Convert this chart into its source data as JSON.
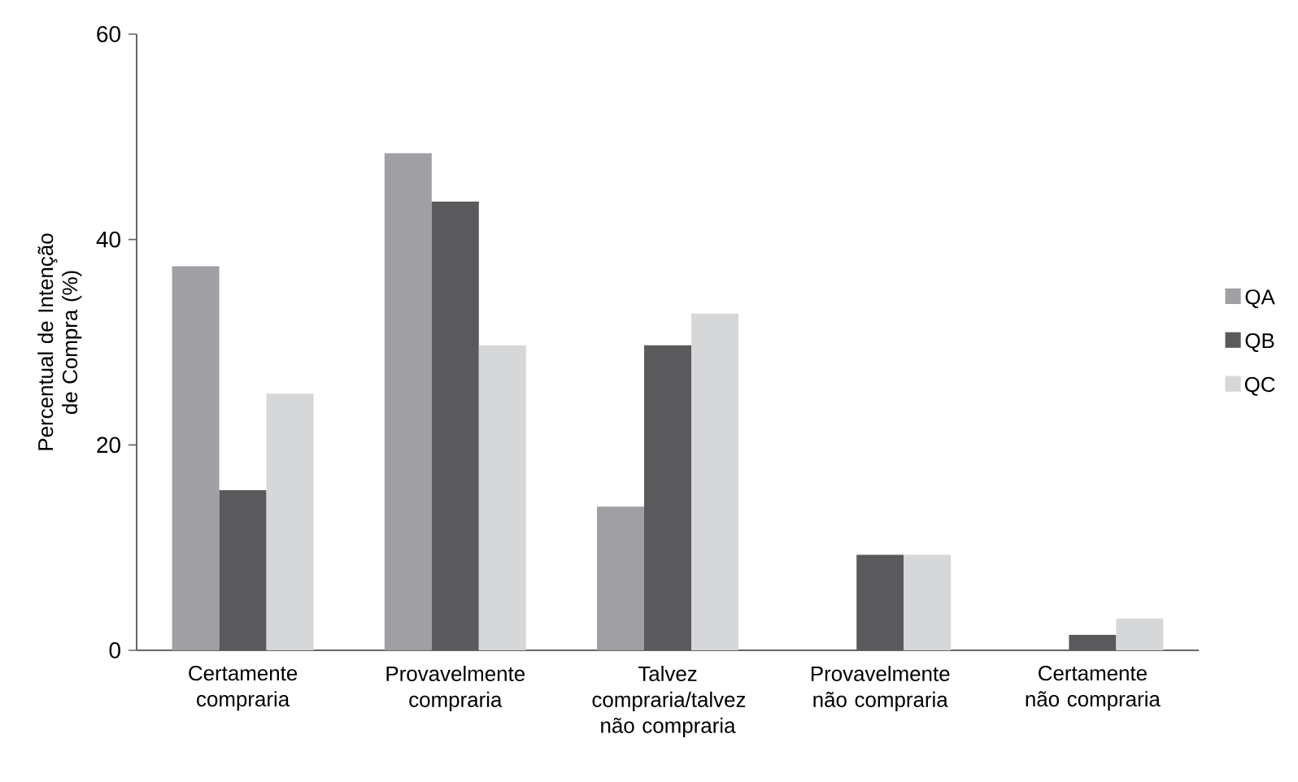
{
  "chart_data": {
    "type": "bar",
    "ylabel": "Percentual de Intenção de Compra (%)",
    "categories": [
      "Certamente compraria",
      "Provavelmente compraria",
      "Talvez compraria/talvez não compraria",
      "Provavelmente não compraria",
      "Certamente não compraria"
    ],
    "series": [
      {
        "name": "QA",
        "color": "#a0a0a4",
        "values": [
          37.4,
          48.4,
          14.0,
          0,
          0
        ]
      },
      {
        "name": "QB",
        "color": "#5a5a5c",
        "values": [
          15.6,
          43.7,
          29.7,
          9.3,
          1.5
        ]
      },
      {
        "name": "QC",
        "color": "#d6d7d9",
        "values": [
          25.0,
          29.7,
          32.8,
          9.3,
          3.1
        ]
      }
    ],
    "ylim": [
      0,
      60
    ],
    "yticks": [
      0,
      20,
      40,
      60
    ],
    "grid": false,
    "legend": "right"
  }
}
